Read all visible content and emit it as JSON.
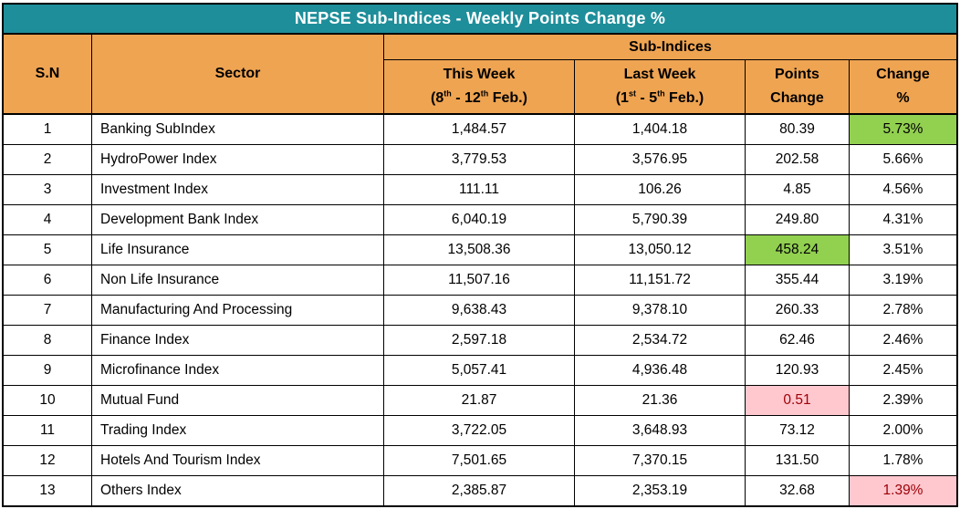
{
  "colors": {
    "title_bg": "#1e8e9a",
    "title_text": "#ffffff",
    "header_bg": "#efa452",
    "green_highlight": "#92d050",
    "pink_highlight": "#ffc7ce",
    "red_text": "#9c0006",
    "border": "#000000"
  },
  "header": {
    "sn": "S.N",
    "sector": "Sector",
    "group": "Sub-Indices",
    "this_week": {
      "line1": "This Week",
      "p1": "(8",
      "s1": "th",
      "p2": " - 12",
      "s2": "th",
      "p3": " Feb.)"
    },
    "last_week": {
      "line1": "Last Week",
      "p1": "(1",
      "s1": "st",
      "p2": " - 5",
      "s2": "th",
      "p3": " Feb.)"
    },
    "points": {
      "line1": "Points",
      "line2": "Change"
    },
    "change": {
      "line1": "Change",
      "line2": "%"
    }
  },
  "chart_data": {
    "type": "table",
    "title": "NEPSE Sub-Indices - Weekly Points Change %",
    "column_group": "Sub-Indices",
    "columns": [
      "S.N",
      "Sector",
      "This Week (8th - 12th Feb.)",
      "Last Week (1st - 5th Feb.)",
      "Points Change",
      "Change %"
    ],
    "rows": [
      {
        "sn": "1",
        "sector": "Banking SubIndex",
        "this_week": "1,484.57",
        "last_week": "1,404.18",
        "points_change": "80.39",
        "change_pct": "5.73%",
        "points_highlight": "none",
        "change_highlight": "green"
      },
      {
        "sn": "2",
        "sector": "HydroPower Index",
        "this_week": "3,779.53",
        "last_week": "3,576.95",
        "points_change": "202.58",
        "change_pct": "5.66%",
        "points_highlight": "none",
        "change_highlight": "none"
      },
      {
        "sn": "3",
        "sector": "Investment Index",
        "this_week": "111.11",
        "last_week": "106.26",
        "points_change": "4.85",
        "change_pct": "4.56%",
        "points_highlight": "none",
        "change_highlight": "none"
      },
      {
        "sn": "4",
        "sector": "Development Bank Index",
        "this_week": "6,040.19",
        "last_week": "5,790.39",
        "points_change": "249.80",
        "change_pct": "4.31%",
        "points_highlight": "none",
        "change_highlight": "none"
      },
      {
        "sn": "5",
        "sector": "Life Insurance",
        "this_week": "13,508.36",
        "last_week": "13,050.12",
        "points_change": "458.24",
        "change_pct": "3.51%",
        "points_highlight": "green",
        "change_highlight": "none"
      },
      {
        "sn": "6",
        "sector": "Non Life Insurance",
        "this_week": "11,507.16",
        "last_week": "11,151.72",
        "points_change": "355.44",
        "change_pct": "3.19%",
        "points_highlight": "none",
        "change_highlight": "none"
      },
      {
        "sn": "7",
        "sector": "Manufacturing And Processing",
        "this_week": "9,638.43",
        "last_week": "9,378.10",
        "points_change": "260.33",
        "change_pct": "2.78%",
        "points_highlight": "none",
        "change_highlight": "none"
      },
      {
        "sn": "8",
        "sector": "Finance Index",
        "this_week": "2,597.18",
        "last_week": "2,534.72",
        "points_change": "62.46",
        "change_pct": "2.46%",
        "points_highlight": "none",
        "change_highlight": "none"
      },
      {
        "sn": "9",
        "sector": "Microfinance Index",
        "this_week": "5,057.41",
        "last_week": "4,936.48",
        "points_change": "120.93",
        "change_pct": "2.45%",
        "points_highlight": "none",
        "change_highlight": "none"
      },
      {
        "sn": "10",
        "sector": "Mutual Fund",
        "this_week": "21.87",
        "last_week": "21.36",
        "points_change": "0.51",
        "change_pct": "2.39%",
        "points_highlight": "red",
        "change_highlight": "none"
      },
      {
        "sn": "11",
        "sector": "Trading Index",
        "this_week": "3,722.05",
        "last_week": "3,648.93",
        "points_change": "73.12",
        "change_pct": "2.00%",
        "points_highlight": "none",
        "change_highlight": "none"
      },
      {
        "sn": "12",
        "sector": "Hotels And Tourism Index",
        "this_week": "7,501.65",
        "last_week": "7,370.15",
        "points_change": "131.50",
        "change_pct": "1.78%",
        "points_highlight": "none",
        "change_highlight": "none"
      },
      {
        "sn": "13",
        "sector": "Others Index",
        "this_week": "2,385.87",
        "last_week": "2,353.19",
        "points_change": "32.68",
        "change_pct": "1.39%",
        "points_highlight": "none",
        "change_highlight": "red"
      }
    ]
  }
}
